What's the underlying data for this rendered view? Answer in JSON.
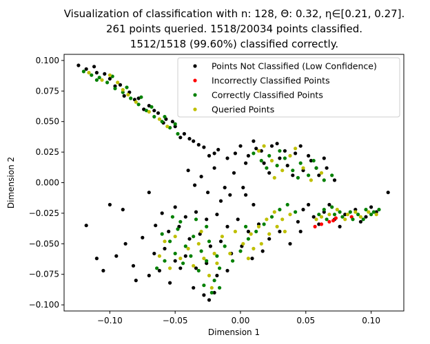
{
  "chart_data": {
    "type": "scatter",
    "title_lines": [
      "Visualization of classification with n: 128, Θ: 0.32, η∈[0.21, 0.27].",
      "261 points queried. 1518/20034 points classified.",
      "1512/1518 (99.60%) classified correctly."
    ],
    "xlabel": "Dimension 1",
    "ylabel": "Dimension 2",
    "xlim": [
      -0.135,
      0.125
    ],
    "ylim": [
      -0.105,
      0.105
    ],
    "xticks": [
      -0.1,
      -0.05,
      0.0,
      0.05,
      0.1
    ],
    "xtick_labels": [
      "−0.10",
      "−0.05",
      "0.00",
      "0.05",
      "0.10"
    ],
    "yticks": [
      0.1,
      0.075,
      0.05,
      0.025,
      0.0,
      -0.025,
      -0.05,
      -0.075,
      -0.1
    ],
    "ytick_labels": [
      "0.100",
      "0.075",
      "0.050",
      "0.025",
      "0.000",
      "−0.025",
      "−0.050",
      "−0.075",
      "−0.100"
    ],
    "grid": false,
    "legend_position": "top-right",
    "colors": {
      "not_classified": "#000000",
      "incorrect": "#ff0000",
      "correct": "#008000",
      "queried": "#bfbf00"
    },
    "series": [
      {
        "name": "Points Not Classified (Low Confidence)",
        "color": "#000000",
        "points": [
          [
            -0.124,
            0.096
          ],
          [
            -0.118,
            0.093
          ],
          [
            -0.11,
            0.09
          ],
          [
            -0.1,
            0.085
          ],
          [
            -0.092,
            0.08
          ],
          [
            -0.085,
            0.074
          ],
          [
            -0.078,
            0.069
          ],
          [
            -0.07,
            0.063
          ],
          [
            -0.063,
            0.057
          ],
          [
            -0.057,
            0.052
          ],
          [
            -0.05,
            0.046
          ],
          [
            -0.043,
            0.04
          ],
          [
            -0.036,
            0.034
          ],
          [
            -0.028,
            0.029
          ],
          [
            -0.02,
            0.024
          ],
          [
            -0.112,
            0.095
          ],
          [
            -0.104,
            0.089
          ],
          [
            -0.096,
            0.079
          ],
          [
            -0.089,
            0.071
          ],
          [
            -0.081,
            0.068
          ],
          [
            -0.074,
            0.06
          ],
          [
            -0.066,
            0.059
          ],
          [
            -0.059,
            0.049
          ],
          [
            -0.052,
            0.05
          ],
          [
            -0.046,
            0.037
          ],
          [
            -0.039,
            0.036
          ],
          [
            -0.032,
            0.031
          ],
          [
            -0.024,
            0.022
          ],
          [
            -0.017,
            0.027
          ],
          [
            -0.01,
            0.02
          ],
          [
            0.0,
            0.03
          ],
          [
            0.006,
            0.022
          ],
          [
            0.012,
            0.028
          ],
          [
            0.018,
            0.016
          ],
          [
            0.024,
            0.03
          ],
          [
            0.03,
            0.02
          ],
          [
            0.036,
            0.014
          ],
          [
            0.042,
            0.024
          ],
          [
            0.048,
            0.01
          ],
          [
            0.054,
            0.018
          ],
          [
            0.06,
            0.006
          ],
          [
            0.066,
            0.012
          ],
          [
            0.072,
            0.002
          ],
          [
            -0.004,
            0.024
          ],
          [
            0.004,
            0.016
          ],
          [
            0.01,
            0.034
          ],
          [
            0.016,
            0.026
          ],
          [
            0.022,
            0.008
          ],
          [
            0.028,
            0.032
          ],
          [
            0.034,
            0.026
          ],
          [
            0.04,
            0.006
          ],
          [
            0.046,
            0.03
          ],
          [
            0.052,
            0.022
          ],
          [
            0.058,
            0.012
          ],
          [
            0.064,
            0.02
          ],
          [
            -0.04,
            0.01
          ],
          [
            -0.03,
            0.005
          ],
          [
            -0.02,
            0.012
          ],
          [
            -0.012,
            -0.004
          ],
          [
            -0.005,
            0.008
          ],
          [
            -0.025,
            -0.008
          ],
          [
            -0.015,
            -0.015
          ],
          [
            -0.008,
            -0.01
          ],
          [
            -0.035,
            -0.002
          ],
          [
            0.002,
            -0.004
          ],
          [
            -0.06,
            -0.025
          ],
          [
            -0.05,
            -0.02
          ],
          [
            -0.042,
            -0.028
          ],
          [
            -0.034,
            -0.024
          ],
          [
            -0.026,
            -0.03
          ],
          [
            -0.018,
            -0.026
          ],
          [
            -0.01,
            -0.036
          ],
          [
            -0.002,
            -0.03
          ],
          [
            0.006,
            -0.04
          ],
          [
            0.014,
            -0.034
          ],
          [
            0.022,
            -0.046
          ],
          [
            0.03,
            -0.04
          ],
          [
            0.038,
            -0.05
          ],
          [
            0.046,
            -0.04
          ],
          [
            -0.055,
            -0.04
          ],
          [
            -0.047,
            -0.036
          ],
          [
            -0.039,
            -0.046
          ],
          [
            -0.031,
            -0.042
          ],
          [
            -0.023,
            -0.052
          ],
          [
            -0.015,
            -0.048
          ],
          [
            -0.007,
            -0.058
          ],
          [
            0.001,
            -0.052
          ],
          [
            0.009,
            -0.062
          ],
          [
            0.017,
            -0.056
          ],
          [
            -0.066,
            -0.058
          ],
          [
            -0.058,
            -0.054
          ],
          [
            -0.05,
            -0.064
          ],
          [
            -0.042,
            -0.06
          ],
          [
            -0.034,
            -0.07
          ],
          [
            -0.026,
            -0.066
          ],
          [
            -0.018,
            -0.076
          ],
          [
            -0.01,
            -0.072
          ],
          [
            -0.07,
            -0.076
          ],
          [
            -0.062,
            -0.072
          ],
          [
            -0.054,
            -0.082
          ],
          [
            -0.046,
            -0.07
          ],
          [
            -0.036,
            -0.086
          ],
          [
            -0.028,
            -0.092
          ],
          [
            -0.02,
            -0.09
          ],
          [
            -0.024,
            -0.096
          ],
          [
            0.048,
            -0.022
          ],
          [
            0.056,
            -0.028
          ],
          [
            0.064,
            -0.024
          ],
          [
            0.072,
            -0.03
          ],
          [
            0.08,
            -0.026
          ],
          [
            0.088,
            -0.022
          ],
          [
            0.096,
            -0.028
          ],
          [
            0.104,
            -0.024
          ],
          [
            0.06,
            -0.034
          ],
          [
            0.052,
            -0.018
          ],
          [
            0.044,
            -0.032
          ],
          [
            0.076,
            -0.036
          ],
          [
            0.092,
            -0.032
          ],
          [
            0.1,
            -0.02
          ],
          [
            0.068,
            -0.018
          ],
          [
            -0.118,
            -0.035
          ],
          [
            -0.11,
            -0.062
          ],
          [
            -0.105,
            -0.072
          ],
          [
            -0.095,
            -0.06
          ],
          [
            -0.088,
            -0.05
          ],
          [
            -0.082,
            -0.068
          ],
          [
            -0.075,
            -0.045
          ],
          [
            -0.1,
            -0.018
          ],
          [
            -0.09,
            -0.022
          ],
          [
            -0.07,
            -0.008
          ],
          [
            -0.065,
            -0.035
          ],
          [
            -0.08,
            -0.08
          ],
          [
            0.113,
            -0.008
          ],
          [
            0.004,
            -0.01
          ],
          [
            0.01,
            -0.018
          ]
        ]
      },
      {
        "name": "Incorrectly Classified Points",
        "color": "#ff0000",
        "points": [
          [
            0.057,
            -0.036
          ],
          [
            0.071,
            -0.031
          ],
          [
            0.073,
            -0.029
          ],
          [
            0.062,
            -0.034
          ],
          [
            0.085,
            -0.028
          ],
          [
            0.068,
            -0.032
          ]
        ]
      },
      {
        "name": "Correctly Classified Points",
        "color": "#008000",
        "points": [
          [
            -0.12,
            0.091
          ],
          [
            -0.114,
            0.088
          ],
          [
            -0.108,
            0.086
          ],
          [
            -0.102,
            0.082
          ],
          [
            -0.096,
            0.077
          ],
          [
            -0.09,
            0.074
          ],
          [
            -0.084,
            0.069
          ],
          [
            -0.078,
            0.064
          ],
          [
            -0.072,
            0.059
          ],
          [
            -0.066,
            0.054
          ],
          [
            -0.06,
            0.05
          ],
          [
            -0.054,
            0.045
          ],
          [
            -0.048,
            0.04
          ],
          [
            -0.11,
            0.084
          ],
          [
            -0.098,
            0.087
          ],
          [
            -0.087,
            0.078
          ],
          [
            -0.076,
            0.07
          ],
          [
            -0.068,
            0.062
          ],
          [
            -0.058,
            0.054
          ],
          [
            -0.05,
            0.048
          ],
          [
            0.01,
            0.024
          ],
          [
            0.016,
            0.018
          ],
          [
            0.022,
            0.022
          ],
          [
            0.028,
            0.014
          ],
          [
            0.034,
            0.02
          ],
          [
            0.04,
            0.01
          ],
          [
            0.046,
            0.016
          ],
          [
            0.052,
            0.006
          ],
          [
            0.058,
            0.012
          ],
          [
            0.064,
            0.002
          ],
          [
            0.07,
            0.006
          ],
          [
            0.02,
            0.012
          ],
          [
            0.03,
            0.026
          ],
          [
            0.044,
            0.004
          ],
          [
            0.056,
            0.018
          ],
          [
            -0.06,
            -0.042
          ],
          [
            -0.054,
            -0.048
          ],
          [
            -0.048,
            -0.038
          ],
          [
            -0.042,
            -0.052
          ],
          [
            -0.036,
            -0.044
          ],
          [
            -0.03,
            -0.056
          ],
          [
            -0.024,
            -0.048
          ],
          [
            -0.018,
            -0.06
          ],
          [
            -0.012,
            -0.052
          ],
          [
            -0.006,
            -0.064
          ],
          [
            0.0,
            -0.056
          ],
          [
            0.006,
            -0.046
          ],
          [
            0.012,
            -0.04
          ],
          [
            0.018,
            -0.034
          ],
          [
            0.024,
            -0.028
          ],
          [
            0.03,
            -0.022
          ],
          [
            0.036,
            -0.018
          ],
          [
            0.042,
            -0.024
          ],
          [
            -0.05,
            -0.058
          ],
          [
            -0.044,
            -0.066
          ],
          [
            -0.038,
            -0.06
          ],
          [
            -0.032,
            -0.072
          ],
          [
            -0.026,
            -0.064
          ],
          [
            -0.02,
            -0.08
          ],
          [
            -0.016,
            -0.07
          ],
          [
            -0.028,
            -0.084
          ],
          [
            -0.022,
            -0.09
          ],
          [
            -0.016,
            -0.086
          ],
          [
            -0.064,
            -0.07
          ],
          [
            -0.058,
            -0.064
          ],
          [
            -0.052,
            -0.028
          ],
          [
            -0.046,
            -0.032
          ],
          [
            -0.034,
            -0.03
          ],
          [
            -0.026,
            -0.036
          ],
          [
            0.004,
            -0.036
          ],
          [
            0.06,
            -0.026
          ],
          [
            0.066,
            -0.03
          ],
          [
            0.072,
            -0.026
          ],
          [
            0.078,
            -0.028
          ],
          [
            0.084,
            -0.024
          ],
          [
            0.09,
            -0.026
          ],
          [
            0.096,
            -0.022
          ],
          [
            0.102,
            -0.024
          ],
          [
            0.106,
            -0.022
          ],
          [
            0.086,
            -0.03
          ],
          [
            0.094,
            -0.03
          ],
          [
            0.1,
            -0.026
          ],
          [
            0.076,
            -0.024
          ],
          [
            0.07,
            -0.02
          ],
          [
            0.064,
            -0.022
          ]
        ]
      },
      {
        "name": "Queried Points",
        "color": "#bfbf00",
        "points": [
          [
            -0.116,
            0.09
          ],
          [
            -0.106,
            0.084
          ],
          [
            -0.094,
            0.082
          ],
          [
            -0.086,
            0.072
          ],
          [
            -0.08,
            0.066
          ],
          [
            -0.07,
            0.058
          ],
          [
            -0.062,
            0.052
          ],
          [
            -0.056,
            0.046
          ],
          [
            -0.1,
            0.088
          ],
          [
            -0.09,
            0.076
          ],
          [
            0.014,
            0.026
          ],
          [
            0.024,
            0.018
          ],
          [
            0.032,
            0.01
          ],
          [
            0.038,
            0.022
          ],
          [
            0.048,
            0.012
          ],
          [
            0.054,
            0.002
          ],
          [
            0.062,
            0.008
          ],
          [
            0.018,
            0.03
          ],
          [
            0.042,
            0.028
          ],
          [
            0.026,
            0.004
          ],
          [
            -0.058,
            -0.048
          ],
          [
            -0.05,
            -0.044
          ],
          [
            -0.04,
            -0.054
          ],
          [
            -0.032,
            -0.05
          ],
          [
            -0.028,
            -0.062
          ],
          [
            -0.02,
            -0.058
          ],
          [
            -0.014,
            -0.044
          ],
          [
            -0.008,
            -0.058
          ],
          [
            0.002,
            -0.05
          ],
          [
            0.008,
            -0.042
          ],
          [
            0.014,
            -0.036
          ],
          [
            0.02,
            -0.03
          ],
          [
            0.026,
            -0.024
          ],
          [
            0.032,
            -0.03
          ],
          [
            0.038,
            -0.026
          ],
          [
            0.016,
            -0.05
          ],
          [
            0.01,
            -0.054
          ],
          [
            0.022,
            -0.042
          ],
          [
            -0.046,
            -0.062
          ],
          [
            -0.036,
            -0.068
          ],
          [
            -0.024,
            -0.076
          ],
          [
            -0.018,
            -0.066
          ],
          [
            -0.062,
            -0.06
          ],
          [
            -0.054,
            -0.07
          ],
          [
            -0.03,
            -0.04
          ],
          [
            -0.022,
            -0.086
          ],
          [
            0.028,
            -0.036
          ],
          [
            0.034,
            -0.04
          ],
          [
            0.006,
            -0.062
          ],
          [
            -0.004,
            -0.04
          ],
          [
            0.062,
            -0.028
          ],
          [
            0.074,
            -0.022
          ],
          [
            0.082,
            -0.026
          ],
          [
            0.088,
            -0.024
          ],
          [
            0.098,
            -0.024
          ],
          [
            0.104,
            -0.026
          ],
          [
            0.08,
            -0.03
          ],
          [
            0.092,
            -0.028
          ],
          [
            0.068,
            -0.026
          ],
          [
            0.058,
            -0.03
          ]
        ]
      }
    ]
  }
}
